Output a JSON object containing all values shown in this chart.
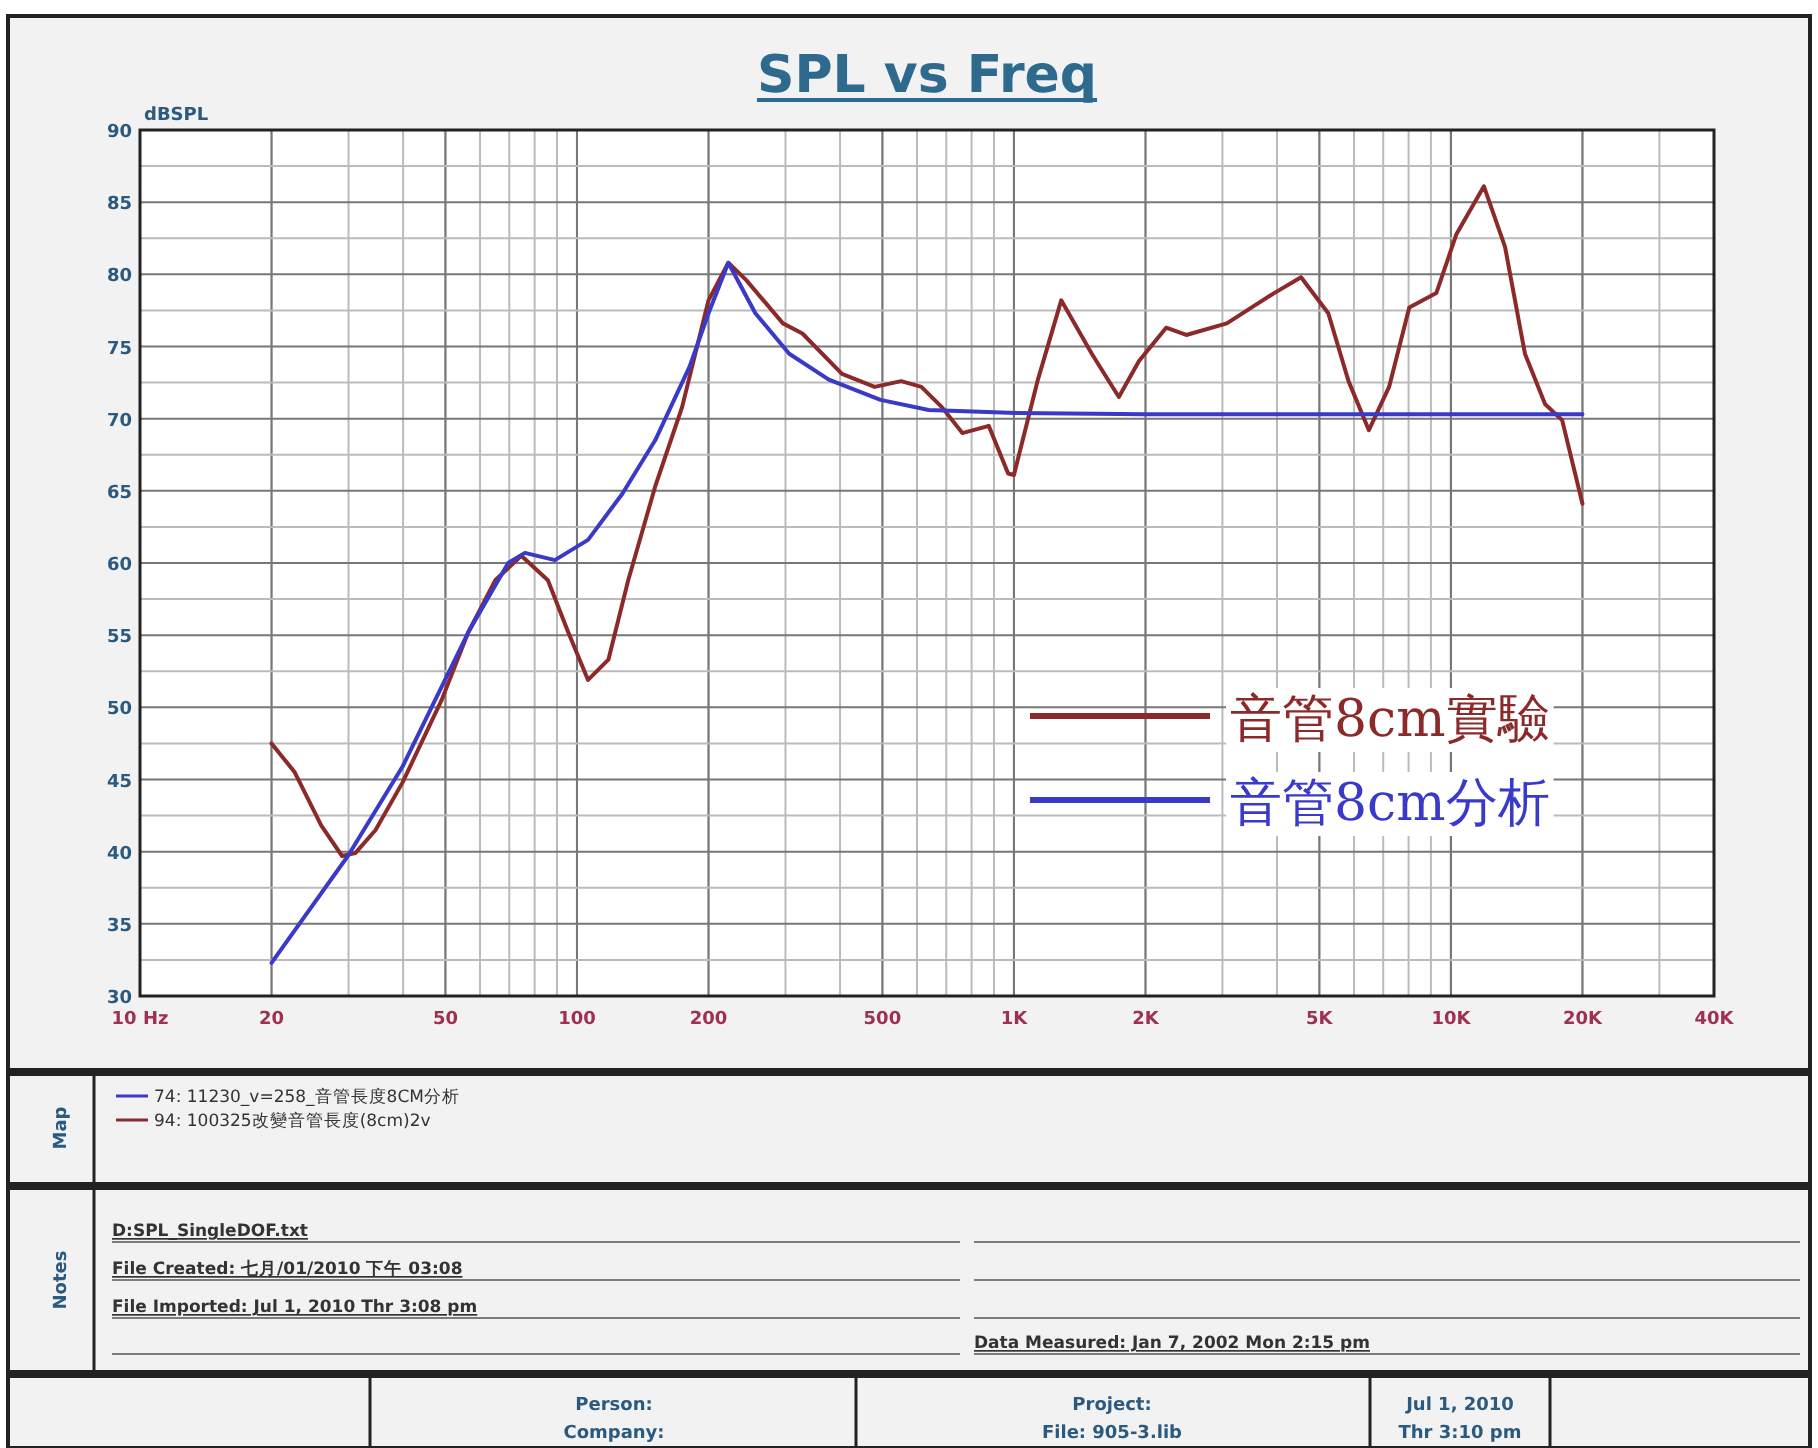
{
  "chart_data": {
    "type": "line",
    "title": "SPL vs Freq",
    "ylabel": "dBSPL",
    "log": "x",
    "grid": true,
    "legend": "right",
    "line_style": "solid",
    "marker": "none",
    "xlim": [
      10,
      40000
    ],
    "ylim": [
      30,
      90
    ],
    "xticks": [
      {
        "value": 10,
        "label": "10  Hz"
      },
      20,
      50,
      100,
      200,
      500,
      {
        "value": 1000,
        "label": "1K"
      },
      {
        "value": 2000,
        "label": "2K"
      },
      {
        "value": 5000,
        "label": "5K"
      },
      {
        "value": 10000,
        "label": "10K"
      },
      {
        "value": 20000,
        "label": "20K"
      },
      {
        "value": 40000,
        "label": "40K"
      }
    ],
    "yticks": [
      30,
      35,
      40,
      45,
      50,
      55,
      60,
      65,
      70,
      75,
      80,
      85,
      90
    ],
    "series": [
      {
        "name": "音管8cm實驗",
        "color": "#8c2a2a",
        "x": [
          20,
          22.6,
          26,
          29,
          31.1,
          34.6,
          39.9,
          49,
          56.4,
          65,
          74.6,
          85.8,
          95.5,
          106,
          118,
          131,
          151,
          174,
          200,
          222,
          244,
          296,
          328,
          404,
          480,
          552,
          614,
          684,
          762,
          876,
          970,
          1000,
          1132,
          1283,
          1507,
          1738,
          1933,
          2230,
          2480,
          3070,
          3940,
          4540,
          5240,
          5830,
          6490,
          7220,
          8030,
          9260,
          10300,
          11900,
          13300,
          14770,
          16430,
          17970,
          20000
        ],
        "values": [
          47.5,
          45.5,
          41.8,
          39.7,
          39.9,
          41.5,
          44.8,
          50.5,
          55.2,
          58.8,
          60.5,
          58.8,
          55.2,
          51.9,
          53.3,
          58.8,
          65.3,
          70.8,
          78.2,
          80.8,
          79.6,
          76.6,
          75.9,
          73.1,
          72.2,
          72.6,
          72.2,
          70.8,
          69,
          69.5,
          66.2,
          66.1,
          72.6,
          78.2,
          74.5,
          71.5,
          74,
          76.3,
          75.8,
          76.6,
          78.7,
          79.8,
          77.3,
          72.6,
          69.2,
          72.2,
          77.7,
          78.7,
          82.8,
          86.1,
          81.9,
          74.5,
          71,
          69.9,
          64.1
        ]
      },
      {
        "name": "音管8cm分析",
        "color": "#3a3ac8",
        "x": [
          20,
          29.9,
          39.9,
          56.4,
          69.6,
          76,
          89,
          106,
          127,
          151,
          181,
          200,
          222,
          256,
          306,
          377,
          495,
          638,
          1010,
          2000,
          20000
        ],
        "values": [
          32.3,
          39.7,
          45.9,
          55.2,
          60,
          60.7,
          60.2,
          61.6,
          64.8,
          68.5,
          73.6,
          77.3,
          80.8,
          77.3,
          74.5,
          72.7,
          71.3,
          70.6,
          70.4,
          70.3,
          70.3
        ]
      }
    ],
    "annotations": [
      "74: 11230_v=258_音管長度8CM分析",
      "94: 100325改變音管長度(8cm)2v",
      "D:SPL_SingleDOF.txt",
      "File Created: 七月/01/2010 下午 03:08",
      "File Imported: Jul 1, 2010  Thr  3:08 pm",
      "Data Measured: Jan 7, 2002  Mon  2:15 pm",
      "Person:",
      "Company:",
      "Project:",
      "File: 905-3.lib",
      "Jul 1, 2010",
      "Thr 3:10 pm",
      "Map",
      "Notes"
    ]
  }
}
